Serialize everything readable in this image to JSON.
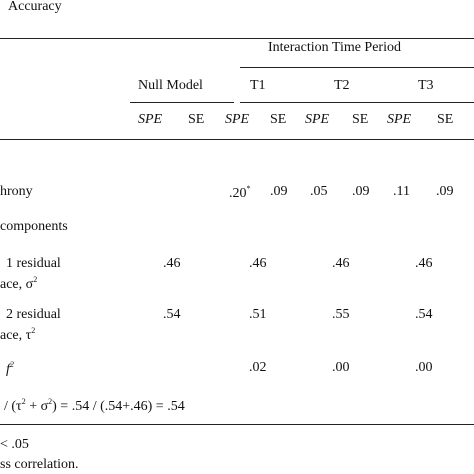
{
  "caption": "Accuracy",
  "header": {
    "group_label": "Interaction Time Period",
    "columns": [
      "Null Model",
      "T1",
      "T2",
      "T3"
    ],
    "sub_spe": "SPE",
    "sub_se": "SE"
  },
  "rows": {
    "synchrony": {
      "label": "hrony",
      "t1_spe": ".20",
      "t1_sup": "*",
      "t1_se": ".09",
      "t2_spe": ".05",
      "t2_se": ".09",
      "t3_spe": ".11",
      "t3_se": ".09"
    },
    "components": {
      "label": "components"
    },
    "level1": {
      "line1": "1 residual",
      "line2_text": "ace, σ",
      "line2_sup": "2",
      "null": ".46",
      "t1": ".46",
      "t2": ".46",
      "t3": ".46"
    },
    "level2": {
      "line1": "2 residual",
      "line2_text": "ace, τ",
      "line2_sup": "2",
      "null": ".54",
      "t1": ".51",
      "t2": ".55",
      "t3": ".54"
    },
    "f2": {
      "label": "f",
      "sup": "2",
      "t1": ".02",
      "t2": ".00",
      "t3": ".00"
    }
  },
  "formula": {
    "pre": "/ (τ",
    "sup1": "2",
    "mid": " + σ",
    "sup2": "2",
    "post": ") = .54 / (.54+.46) = .54"
  },
  "notes": {
    "n1": "< .05",
    "n2": "ss correlation."
  }
}
